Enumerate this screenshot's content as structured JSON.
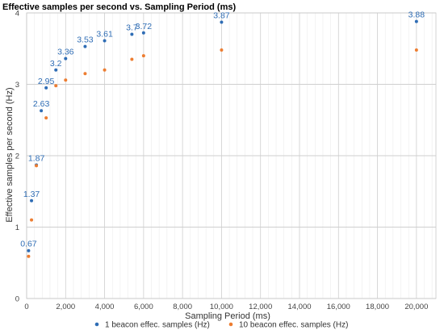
{
  "chart_data": {
    "type": "scatter",
    "title": "Effective samples per second vs. Sampling Period (ms)",
    "xlabel": "Sampling Period (ms)",
    "ylabel": "Effective samples per second (Hz)",
    "xlim": [
      0,
      21000
    ],
    "ylim": [
      0,
      4
    ],
    "x_ticks": [
      0,
      2000,
      4000,
      6000,
      8000,
      10000,
      12000,
      14000,
      16000,
      18000,
      20000
    ],
    "x_tick_labels": [
      "0",
      "2,000",
      "4,000",
      "6,000",
      "8,000",
      "10,000",
      "12,000",
      "14,000",
      "16,000",
      "18,000",
      "20,000"
    ],
    "y_ticks": [
      0,
      1,
      2,
      3,
      4
    ],
    "y_tick_labels": [
      "0",
      "1",
      "2",
      "3",
      "4"
    ],
    "x_minor_grid_step": 400,
    "grid": true,
    "legend_position": "bottom",
    "series": [
      {
        "name": "1 beacon effec. samples (Hz)",
        "color": "#2f6db5",
        "x": [
          100,
          250,
          500,
          750,
          1000,
          1500,
          2000,
          3000,
          4000,
          5400,
          6000,
          10000,
          20000
        ],
        "y": [
          0.67,
          1.37,
          1.87,
          2.63,
          2.95,
          3.2,
          3.36,
          3.53,
          3.61,
          3.7,
          3.72,
          3.87,
          3.88
        ],
        "labels": [
          "0.67",
          "1.37",
          "1.87",
          "2.63",
          "2.95",
          "3.2",
          "3.36",
          "3.53",
          "3.61",
          "3.7",
          "3.72",
          "3.87",
          "3.88"
        ]
      },
      {
        "name": "10 beacon effec. samples (Hz)",
        "color": "#ed7d31",
        "x": [
          100,
          250,
          500,
          1000,
          1500,
          2000,
          3000,
          4000,
          5400,
          6000,
          10000,
          20000
        ],
        "y": [
          0.59,
          1.1,
          1.86,
          2.53,
          2.98,
          3.06,
          3.15,
          3.2,
          3.35,
          3.4,
          3.48,
          3.48
        ]
      }
    ]
  }
}
